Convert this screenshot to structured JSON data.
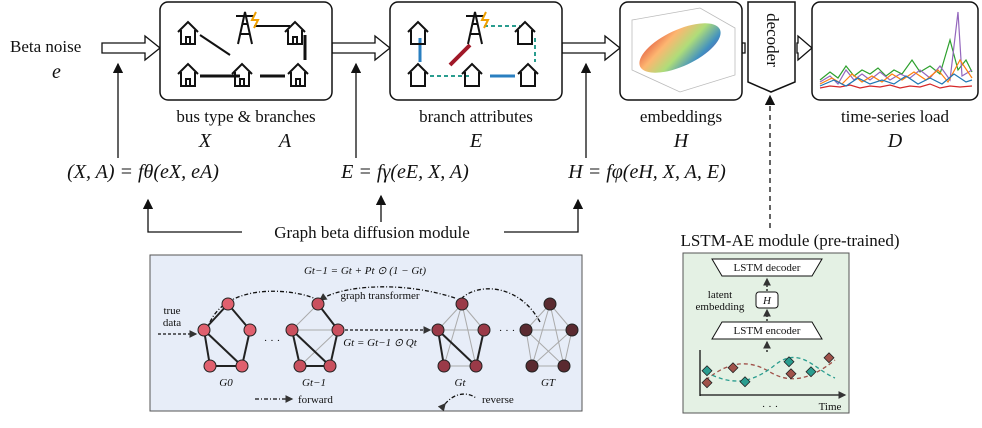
{
  "input": {
    "label": "Beta noise",
    "symbol": "e"
  },
  "stages": [
    {
      "label": "bus type & branches",
      "symbols": [
        "X",
        "A"
      ]
    },
    {
      "label": "branch attributes",
      "symbols": [
        "E"
      ]
    },
    {
      "label": "embeddings",
      "symbols": [
        "H"
      ]
    },
    {
      "label": "decoder"
    },
    {
      "label": "time-series load",
      "symbols": [
        "D"
      ]
    }
  ],
  "formulas": [
    "(X, A) = fθ(eX, eA)",
    "E = fγ(eE, X, A)",
    "H = fφ(eH, X, A, E)"
  ],
  "modules": {
    "diffusion": "Graph beta diffusion module",
    "lstm": "LSTM-AE module (pre-trained)"
  },
  "diffusion_inset": {
    "reverse_formula": "Gt−1 = Gt + Pt ⊙ (1 − Gt)",
    "transformer": "graph transformer",
    "true_data": [
      "true",
      "data"
    ],
    "forward_formula": "Gt = Gt−1 ⊙ Qt",
    "graphs": [
      "G0",
      "Gt−1",
      "Gt",
      "GT"
    ],
    "ellipsis": "· · ·",
    "legend": {
      "forward": "forward",
      "reverse": "reverse"
    }
  },
  "lstm_inset": {
    "decoder": "LSTM decoder",
    "latent": [
      "latent",
      "embedding"
    ],
    "latent_symbol": "H",
    "encoder": "LSTM encoder",
    "ellipsis": "· · ·",
    "x_label": "Time"
  }
}
